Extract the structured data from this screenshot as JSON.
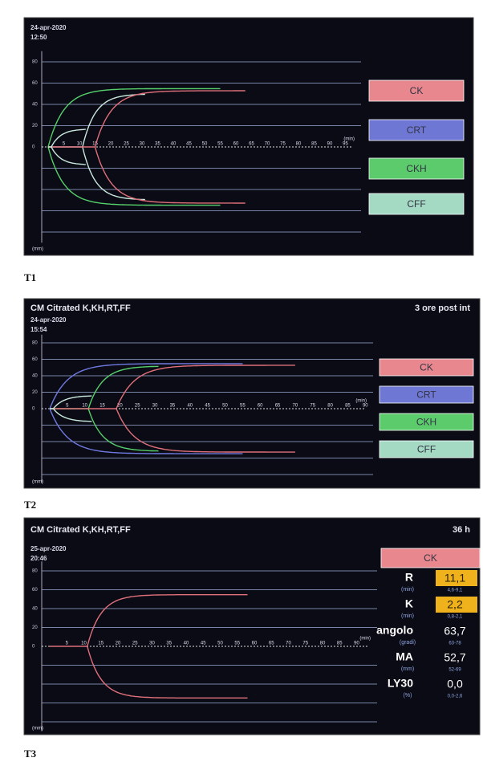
{
  "panels": [
    {
      "label": "T1",
      "date": "24-apr-2020",
      "time": "12:50",
      "y_ticks": [
        80,
        60,
        40,
        20,
        0
      ],
      "x_ticks": [
        5,
        10,
        15,
        20,
        25,
        30,
        35,
        40,
        45,
        50,
        55,
        60,
        65,
        70,
        75,
        80,
        85,
        90,
        95
      ],
      "x_unit": "(min)",
      "y_unit": "(mm)",
      "buttons": [
        "CK",
        "CRT",
        "CKH",
        "CFF"
      ]
    },
    {
      "label": "T2",
      "title": "CM Citrated K,KH,RT,FF",
      "note": "3 ore post int",
      "date": "24-apr-2020",
      "time": "15:54",
      "y_ticks": [
        80,
        60,
        40,
        20,
        0
      ],
      "x_ticks": [
        5,
        10,
        15,
        20,
        25,
        30,
        35,
        40,
        45,
        50,
        55,
        60,
        65,
        70,
        75,
        80,
        85,
        90
      ],
      "x_unit": "(min)",
      "y_unit": "(mm)",
      "buttons": [
        "CK",
        "CRT",
        "CKH",
        "CFF"
      ]
    },
    {
      "label": "T3",
      "title": "CM Citrated K,KH,RT,FF",
      "note": "36 h",
      "date": "25-apr-2020",
      "time": "20:46",
      "y_ticks": [
        80,
        60,
        40,
        20,
        0
      ],
      "x_ticks": [
        5,
        10,
        15,
        20,
        25,
        30,
        35,
        40,
        45,
        50,
        55,
        60,
        65,
        70,
        75,
        80,
        85,
        90
      ],
      "x_unit": "(min)",
      "y_unit": "(mm)",
      "buttons": [
        "CK"
      ],
      "parameters": [
        {
          "name": "R",
          "unit": "(min)",
          "value": "11,1",
          "range": "4,6-9,1"
        },
        {
          "name": "K",
          "unit": "(min)",
          "value": "2,2",
          "range": "0,8-2,1"
        },
        {
          "name": "angolo",
          "unit": "(gradi)",
          "value": "63,7",
          "range": "63-78"
        },
        {
          "name": "MA",
          "unit": "(mm)",
          "value": "52,7",
          "range": "52-69"
        },
        {
          "name": "LY30",
          "unit": "(%)",
          "value": "0,0",
          "range": "0,0-2,6"
        }
      ]
    }
  ]
}
